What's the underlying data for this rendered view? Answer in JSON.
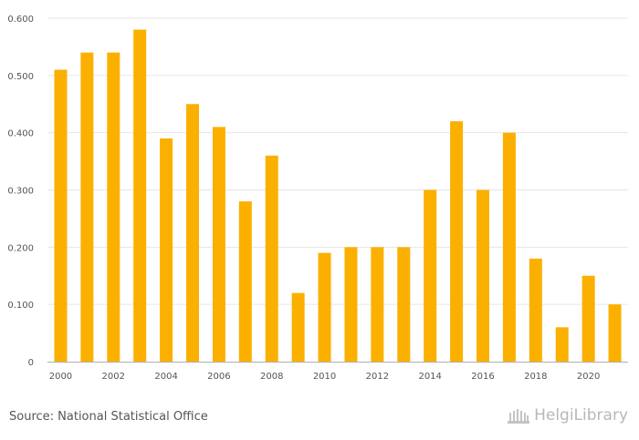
{
  "chart_data": {
    "type": "bar",
    "title": "",
    "xlabel": "",
    "ylabel": "",
    "categories": [
      "2000",
      "2001",
      "2002",
      "2003",
      "2004",
      "2005",
      "2006",
      "2007",
      "2008",
      "2009",
      "2010",
      "2011",
      "2012",
      "2013",
      "2014",
      "2015",
      "2016",
      "2017",
      "2018",
      "2019",
      "2020",
      "2021"
    ],
    "values": [
      0.51,
      0.54,
      0.54,
      0.58,
      0.39,
      0.45,
      0.41,
      0.28,
      0.36,
      0.12,
      0.19,
      0.2,
      0.2,
      0.2,
      0.3,
      0.42,
      0.3,
      0.4,
      0.18,
      0.06,
      0.15,
      0.1
    ],
    "x_tick_labels": [
      "2000",
      "2002",
      "2004",
      "2006",
      "2008",
      "2010",
      "2012",
      "2014",
      "2016",
      "2018",
      "2020"
    ],
    "y_tick_labels": [
      "0",
      "0.100",
      "0.200",
      "0.300",
      "0.400",
      "0.500",
      "0.600"
    ],
    "ylim": [
      0,
      0.6
    ],
    "grid": true,
    "bar_color": "#fbb000"
  },
  "footer": {
    "source": "Source: National Statistical Office",
    "logo_text": "HelgiLibrary"
  }
}
